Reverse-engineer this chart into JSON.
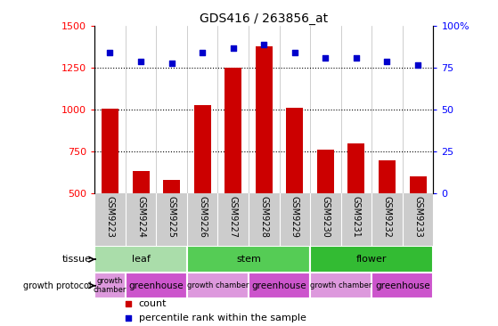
{
  "title": "GDS416 / 263856_at",
  "samples": [
    "GSM9223",
    "GSM9224",
    "GSM9225",
    "GSM9226",
    "GSM9227",
    "GSM9228",
    "GSM9229",
    "GSM9230",
    "GSM9231",
    "GSM9232",
    "GSM9233"
  ],
  "counts": [
    1005,
    635,
    580,
    1030,
    1250,
    1380,
    1010,
    760,
    800,
    700,
    605
  ],
  "percentiles": [
    84,
    79,
    78,
    84,
    87,
    89,
    84,
    81,
    81,
    79,
    77
  ],
  "ymin": 500,
  "ymax": 1500,
  "yticks": [
    500,
    750,
    1000,
    1250,
    1500
  ],
  "bar_color": "#cc0000",
  "dot_color": "#0000cc",
  "tissue_groups": [
    {
      "label": "leaf",
      "start": 0,
      "end": 3,
      "color": "#aaddaa"
    },
    {
      "label": "stem",
      "start": 3,
      "end": 7,
      "color": "#55cc55"
    },
    {
      "label": "flower",
      "start": 7,
      "end": 11,
      "color": "#33bb33"
    }
  ],
  "growth_protocol_groups": [
    {
      "label": "growth\nchamber",
      "start": 0,
      "end": 1,
      "color": "#dd99dd"
    },
    {
      "label": "greenhouse",
      "start": 1,
      "end": 3,
      "color": "#cc55cc"
    },
    {
      "label": "growth chamber",
      "start": 3,
      "end": 5,
      "color": "#dd99dd"
    },
    {
      "label": "greenhouse",
      "start": 5,
      "end": 7,
      "color": "#cc55cc"
    },
    {
      "label": "growth chamber",
      "start": 7,
      "end": 9,
      "color": "#dd99dd"
    },
    {
      "label": "greenhouse",
      "start": 9,
      "end": 11,
      "color": "#cc55cc"
    }
  ],
  "bg_color": "#ffffff",
  "legend_items": [
    {
      "label": "count",
      "color": "#cc0000"
    },
    {
      "label": "percentile rank within the sample",
      "color": "#0000cc"
    }
  ]
}
